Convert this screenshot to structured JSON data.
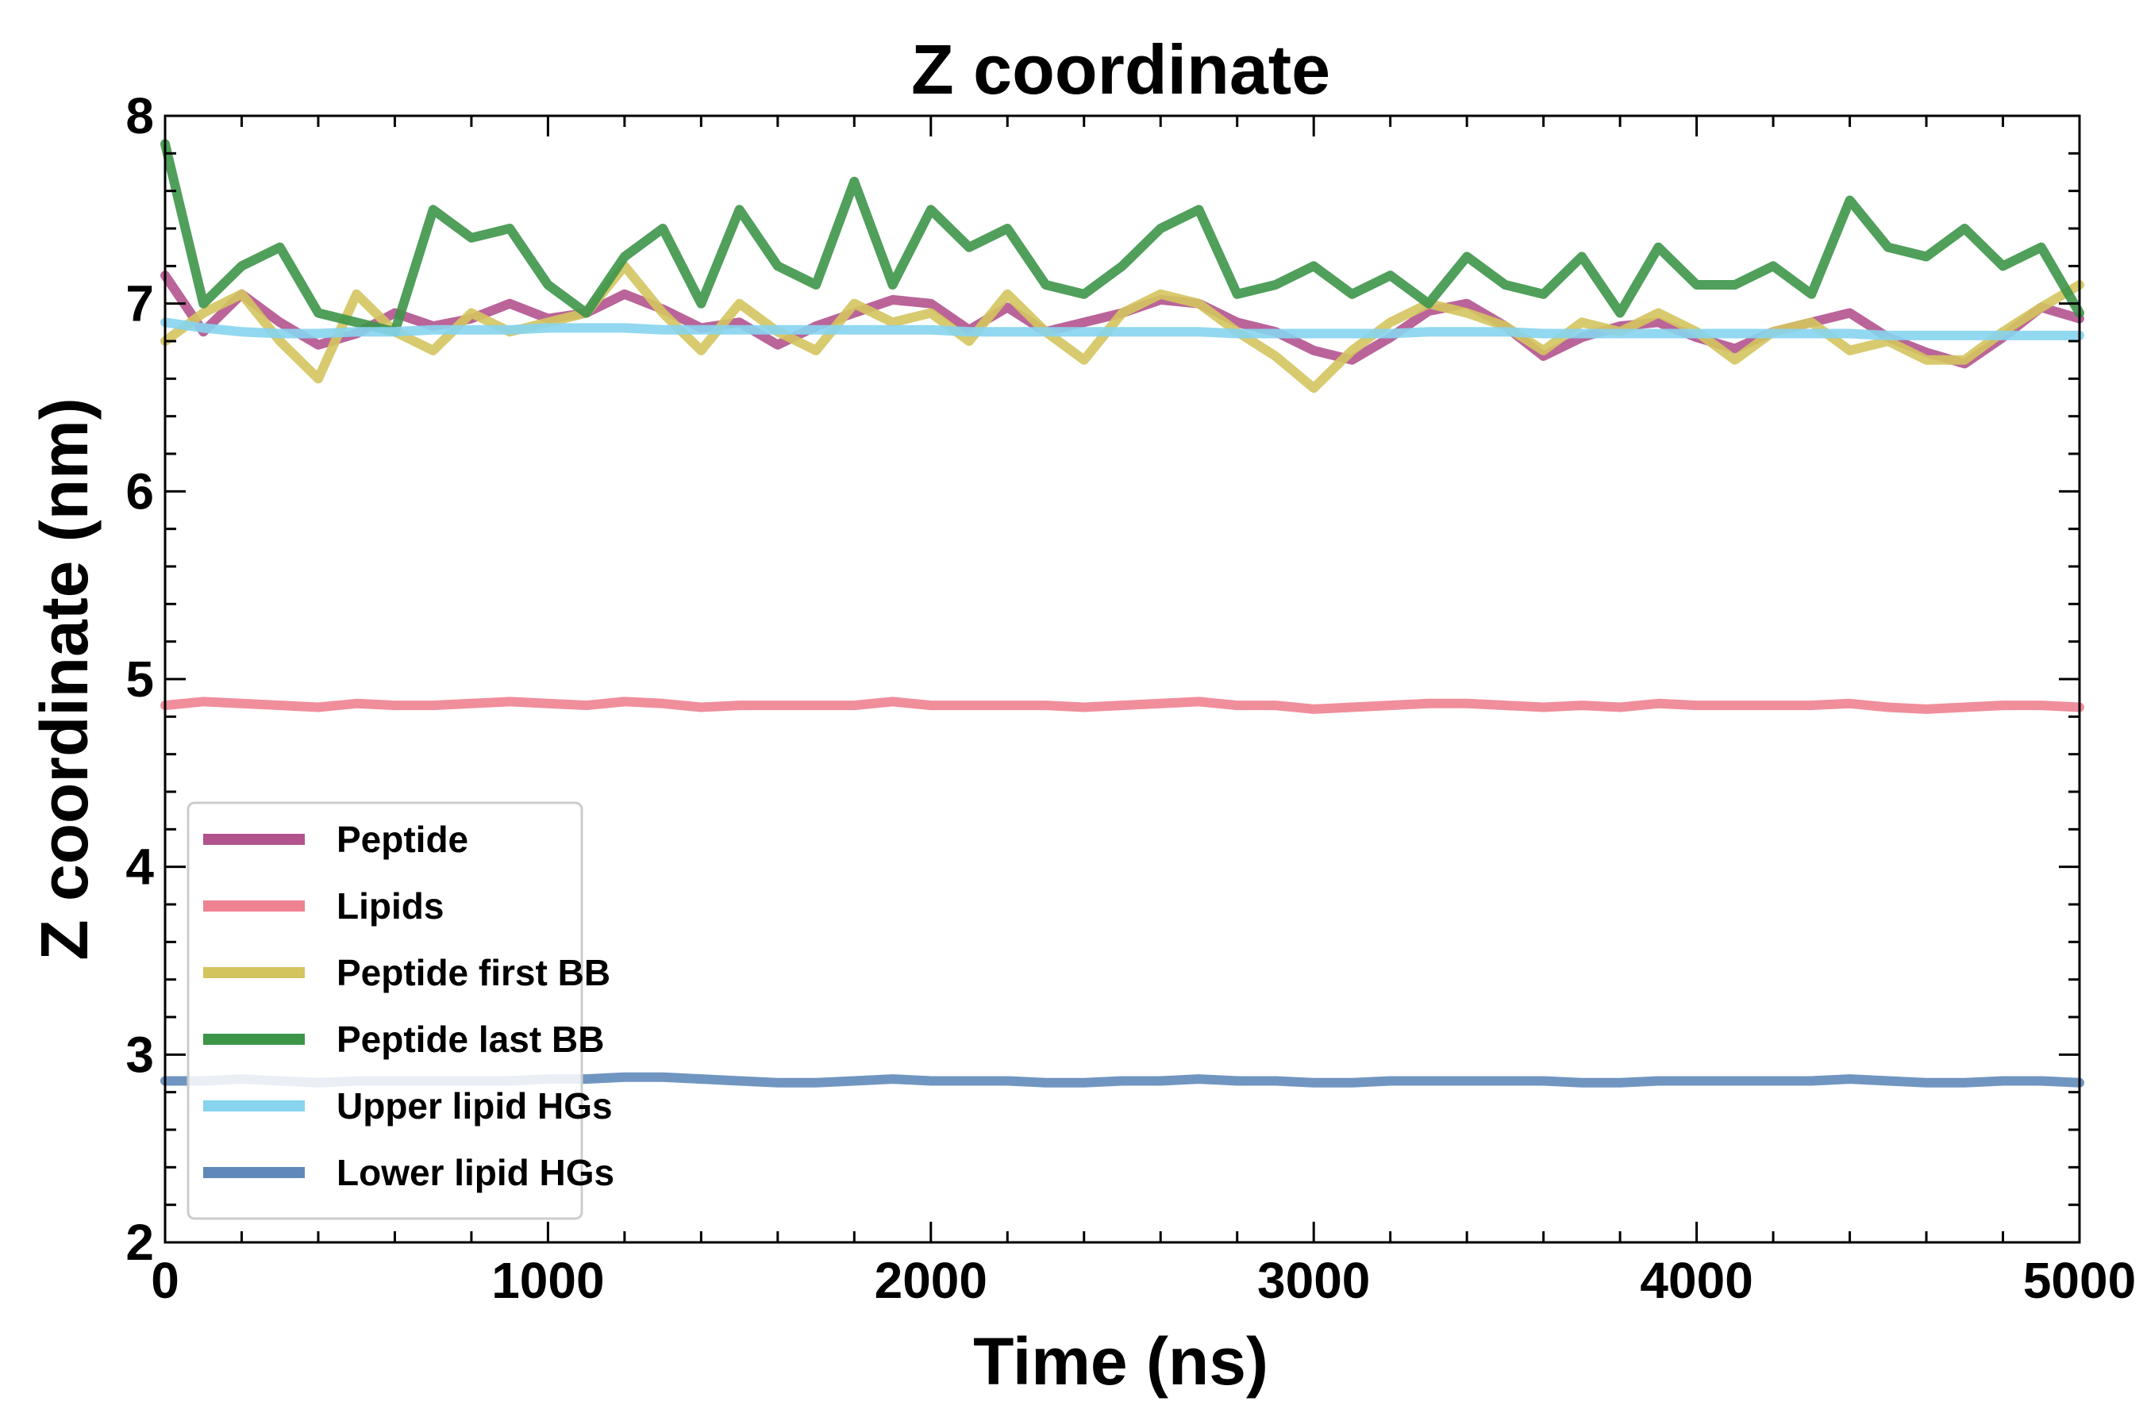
{
  "chart_data": {
    "type": "line",
    "title": "Z coordinate",
    "xlabel": "Time (ns)",
    "ylabel": "Z coordinate (nm)",
    "xlim": [
      0,
      5000
    ],
    "ylim": [
      2,
      8
    ],
    "x_ticks": [
      0,
      1000,
      2000,
      3000,
      4000,
      5000
    ],
    "x_tick_labels": [
      "0",
      "1000",
      "2000",
      "3000",
      "4000",
      "5000"
    ],
    "y_ticks": [
      2,
      3,
      4,
      5,
      6,
      7,
      8
    ],
    "y_tick_labels": [
      "2",
      "3",
      "4",
      "5",
      "6",
      "7",
      "8"
    ],
    "grid": false,
    "legend_position": "lower-left",
    "x": [
      0,
      100,
      200,
      300,
      400,
      500,
      600,
      700,
      800,
      900,
      1000,
      1100,
      1200,
      1300,
      1400,
      1500,
      1600,
      1700,
      1800,
      1900,
      2000,
      2100,
      2200,
      2300,
      2400,
      2500,
      2600,
      2700,
      2800,
      2900,
      3000,
      3100,
      3200,
      3300,
      3400,
      3500,
      3600,
      3700,
      3800,
      3900,
      4000,
      4100,
      4200,
      4300,
      4400,
      4500,
      4600,
      4700,
      4800,
      4900,
      5000
    ],
    "series": [
      {
        "name": "Peptide",
        "color": "#b2538e",
        "values": [
          7.15,
          6.85,
          7.05,
          6.9,
          6.78,
          6.84,
          6.95,
          6.88,
          6.92,
          7.0,
          6.92,
          6.95,
          7.05,
          6.97,
          6.87,
          6.9,
          6.78,
          6.88,
          6.95,
          7.02,
          7.0,
          6.86,
          6.98,
          6.85,
          6.9,
          6.95,
          7.02,
          7.0,
          6.9,
          6.85,
          6.75,
          6.7,
          6.82,
          6.96,
          7.0,
          6.88,
          6.72,
          6.82,
          6.88,
          6.9,
          6.82,
          6.76,
          6.85,
          6.9,
          6.95,
          6.82,
          6.74,
          6.68,
          6.82,
          6.98,
          6.92
        ]
      },
      {
        "name": "Lipids",
        "color": "#ee8291",
        "values": [
          4.86,
          4.88,
          4.87,
          4.86,
          4.85,
          4.87,
          4.86,
          4.86,
          4.87,
          4.88,
          4.87,
          4.86,
          4.88,
          4.87,
          4.85,
          4.86,
          4.86,
          4.86,
          4.86,
          4.88,
          4.86,
          4.86,
          4.86,
          4.86,
          4.85,
          4.86,
          4.87,
          4.88,
          4.86,
          4.86,
          4.84,
          4.85,
          4.86,
          4.87,
          4.87,
          4.86,
          4.85,
          4.86,
          4.85,
          4.87,
          4.86,
          4.86,
          4.86,
          4.86,
          4.87,
          4.85,
          4.84,
          4.85,
          4.86,
          4.86,
          4.85
        ]
      },
      {
        "name": "Peptide first BB",
        "color": "#d4c45e",
        "values": [
          6.8,
          6.95,
          7.05,
          6.8,
          6.6,
          7.05,
          6.85,
          6.75,
          6.95,
          6.85,
          6.9,
          6.95,
          7.2,
          6.95,
          6.75,
          7.0,
          6.85,
          6.75,
          7.0,
          6.9,
          6.95,
          6.8,
          7.05,
          6.85,
          6.7,
          6.95,
          7.05,
          7.0,
          6.85,
          6.72,
          6.55,
          6.75,
          6.9,
          7.0,
          6.95,
          6.88,
          6.75,
          6.9,
          6.85,
          6.95,
          6.85,
          6.7,
          6.85,
          6.9,
          6.75,
          6.8,
          6.7,
          6.7,
          6.85,
          6.98,
          7.1
        ]
      },
      {
        "name": "Peptide last BB",
        "color": "#3d9549",
        "values": [
          7.85,
          7.0,
          7.2,
          7.3,
          6.95,
          6.9,
          6.85,
          7.5,
          7.35,
          7.4,
          7.1,
          6.95,
          7.25,
          7.4,
          7.0,
          7.5,
          7.2,
          7.1,
          7.65,
          7.1,
          7.5,
          7.3,
          7.4,
          7.1,
          7.05,
          7.2,
          7.4,
          7.5,
          7.05,
          7.1,
          7.2,
          7.05,
          7.15,
          7.0,
          7.25,
          7.1,
          7.05,
          7.25,
          6.95,
          7.3,
          7.1,
          7.1,
          7.2,
          7.05,
          7.55,
          7.3,
          7.25,
          7.4,
          7.2,
          7.3,
          6.95
        ]
      },
      {
        "name": "Upper lipid HGs",
        "color": "#86d4ee",
        "values": [
          6.9,
          6.87,
          6.85,
          6.84,
          6.84,
          6.85,
          6.85,
          6.86,
          6.86,
          6.86,
          6.87,
          6.87,
          6.87,
          6.86,
          6.86,
          6.86,
          6.86,
          6.86,
          6.86,
          6.86,
          6.86,
          6.85,
          6.85,
          6.85,
          6.85,
          6.85,
          6.85,
          6.85,
          6.84,
          6.84,
          6.84,
          6.84,
          6.84,
          6.85,
          6.85,
          6.85,
          6.84,
          6.84,
          6.84,
          6.84,
          6.84,
          6.84,
          6.84,
          6.84,
          6.84,
          6.83,
          6.83,
          6.83,
          6.83,
          6.83,
          6.83
        ]
      },
      {
        "name": "Lower lipid HGs",
        "color": "#6089b9",
        "values": [
          2.86,
          2.86,
          2.87,
          2.86,
          2.85,
          2.86,
          2.86,
          2.86,
          2.86,
          2.86,
          2.87,
          2.87,
          2.88,
          2.88,
          2.87,
          2.86,
          2.85,
          2.85,
          2.86,
          2.87,
          2.86,
          2.86,
          2.86,
          2.85,
          2.85,
          2.86,
          2.86,
          2.87,
          2.86,
          2.86,
          2.85,
          2.85,
          2.86,
          2.86,
          2.86,
          2.86,
          2.86,
          2.85,
          2.85,
          2.86,
          2.86,
          2.86,
          2.86,
          2.86,
          2.87,
          2.86,
          2.85,
          2.85,
          2.86,
          2.86,
          2.85
        ]
      }
    ]
  }
}
